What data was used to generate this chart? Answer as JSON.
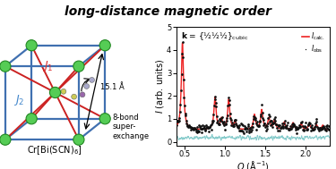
{
  "title": "long-distance magnetic order",
  "title_fontsize": 10,
  "bg_color": "#ffffff",
  "box_color": "#4070b0",
  "red_bond_color": "#cc2222",
  "green_sphere_color": "#55cc55",
  "green_sphere_edge": "#228822",
  "J1_color": "#dd3333",
  "J2_color": "#4488cc",
  "calc_color": "#ee2222",
  "obs_color": "#111111",
  "diff_color": "#88cccc",
  "xmin": 0.4,
  "xmax": 2.3,
  "peaks_x": [
    0.475,
    0.88,
    0.96,
    1.05,
    1.13,
    1.37,
    1.46,
    1.55,
    1.62,
    1.74,
    1.85,
    1.95,
    2.05,
    2.14,
    2.22
  ],
  "peaks_height": [
    3.8,
    1.4,
    0.45,
    1.3,
    0.35,
    0.65,
    0.85,
    0.5,
    0.4,
    0.32,
    0.3,
    0.26,
    0.26,
    0.22,
    0.2
  ],
  "baseline": 0.52,
  "distance_label": "15.1 Å",
  "exchange_label": "8-bond\nsuper-\nexchange"
}
